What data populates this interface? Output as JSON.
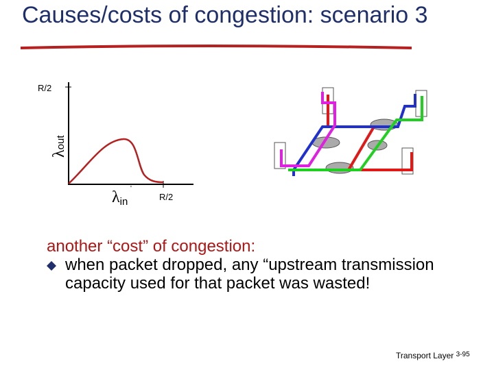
{
  "title": "Causes/costs of congestion: scenario 3",
  "graph": {
    "y_tick": "R/2",
    "y_label": {
      "symbol": "λ",
      "subscript": "out"
    },
    "x_label": {
      "symbol": "λ",
      "subscript": "in",
      "prime": "'"
    },
    "x_tick": "R/2"
  },
  "body": {
    "heading": "another “cost” of congestion:",
    "bullets": [
      "when packet dropped, any “upstream transmission capacity used for that packet was wasted!"
    ]
  },
  "footer": {
    "label": "Transport Layer",
    "page": "3-95"
  }
}
